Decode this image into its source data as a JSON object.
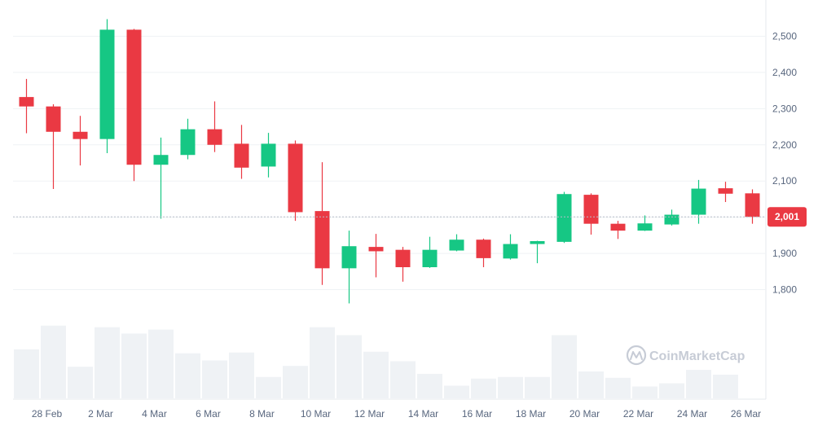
{
  "watermark": "CoinMarketCap",
  "current_price": {
    "label": "2,001",
    "value": 2001,
    "color": "#ea3943"
  },
  "colors": {
    "up": "#16c784",
    "down": "#ea3943",
    "volume": "#eff2f5",
    "grid": "#eff2f5",
    "text": "#58667e"
  },
  "chart_data": {
    "type": "candlestick",
    "title": "",
    "ylim": [
      1700,
      2600
    ],
    "y_ticks": [
      {
        "value": 1800,
        "label": "1,800"
      },
      {
        "value": 1900,
        "label": "1,900"
      },
      {
        "value": 2000,
        "label": "2,000"
      },
      {
        "value": 2100,
        "label": "2,100"
      },
      {
        "value": 2200,
        "label": "2,200"
      },
      {
        "value": 2300,
        "label": "2,300"
      },
      {
        "value": 2400,
        "label": "2,400"
      },
      {
        "value": 2500,
        "label": "2,500"
      }
    ],
    "x_ticks": [
      {
        "index": 1,
        "label": "28 Feb"
      },
      {
        "index": 3,
        "label": "2 Mar"
      },
      {
        "index": 5,
        "label": "4 Mar"
      },
      {
        "index": 7,
        "label": "6 Mar"
      },
      {
        "index": 9,
        "label": "8 Mar"
      },
      {
        "index": 11,
        "label": "10 Mar"
      },
      {
        "index": 13,
        "label": "12 Mar"
      },
      {
        "index": 15,
        "label": "14 Mar"
      },
      {
        "index": 17,
        "label": "16 Mar"
      },
      {
        "index": 19,
        "label": "18 Mar"
      },
      {
        "index": 21,
        "label": "20 Mar"
      },
      {
        "index": 23,
        "label": "22 Mar"
      },
      {
        "index": 25,
        "label": "24 Mar"
      },
      {
        "index": 27,
        "label": "26 Mar"
      }
    ],
    "candles": [
      {
        "open": 2332,
        "high": 2382,
        "low": 2232,
        "close": 2306
      },
      {
        "open": 2306,
        "high": 2312,
        "low": 2078,
        "close": 2236
      },
      {
        "open": 2236,
        "high": 2280,
        "low": 2143,
        "close": 2216
      },
      {
        "open": 2216,
        "high": 2547,
        "low": 2177,
        "close": 2518
      },
      {
        "open": 2518,
        "high": 2520,
        "low": 2100,
        "close": 2145
      },
      {
        "open": 2145,
        "high": 2220,
        "low": 1996,
        "close": 2172
      },
      {
        "open": 2172,
        "high": 2272,
        "low": 2160,
        "close": 2243
      },
      {
        "open": 2243,
        "high": 2320,
        "low": 2180,
        "close": 2200
      },
      {
        "open": 2203,
        "high": 2255,
        "low": 2106,
        "close": 2137
      },
      {
        "open": 2140,
        "high": 2233,
        "low": 2110,
        "close": 2203
      },
      {
        "open": 2203,
        "high": 2212,
        "low": 1990,
        "close": 2014
      },
      {
        "open": 2017,
        "high": 2152,
        "low": 1813,
        "close": 1859
      },
      {
        "open": 1859,
        "high": 1963,
        "low": 1762,
        "close": 1920
      },
      {
        "open": 1918,
        "high": 1954,
        "low": 1834,
        "close": 1906
      },
      {
        "open": 1910,
        "high": 1918,
        "low": 1822,
        "close": 1862
      },
      {
        "open": 1862,
        "high": 1946,
        "low": 1860,
        "close": 1910
      },
      {
        "open": 1908,
        "high": 1953,
        "low": 1906,
        "close": 1938
      },
      {
        "open": 1938,
        "high": 1941,
        "low": 1862,
        "close": 1887
      },
      {
        "open": 1886,
        "high": 1953,
        "low": 1883,
        "close": 1926
      },
      {
        "open": 1926,
        "high": 1935,
        "low": 1873,
        "close": 1934
      },
      {
        "open": 1932,
        "high": 2070,
        "low": 1929,
        "close": 2064
      },
      {
        "open": 2062,
        "high": 2066,
        "low": 1952,
        "close": 1982
      },
      {
        "open": 1982,
        "high": 1990,
        "low": 1940,
        "close": 1963
      },
      {
        "open": 1963,
        "high": 2005,
        "low": 1962,
        "close": 1983
      },
      {
        "open": 1980,
        "high": 2021,
        "low": 1977,
        "close": 2007
      },
      {
        "open": 2007,
        "high": 2103,
        "low": 1982,
        "close": 2079
      },
      {
        "open": 2080,
        "high": 2098,
        "low": 2042,
        "close": 2065
      },
      {
        "open": 2066,
        "high": 2077,
        "low": 1982,
        "close": 2001
      }
    ],
    "volume": [
      0.62,
      0.92,
      0.4,
      0.9,
      0.82,
      0.87,
      0.57,
      0.48,
      0.58,
      0.27,
      0.41,
      0.9,
      0.8,
      0.59,
      0.47,
      0.31,
      0.16,
      0.25,
      0.27,
      0.27,
      0.8,
      0.34,
      0.26,
      0.15,
      0.19,
      0.36,
      0.3,
      0.0
    ]
  }
}
